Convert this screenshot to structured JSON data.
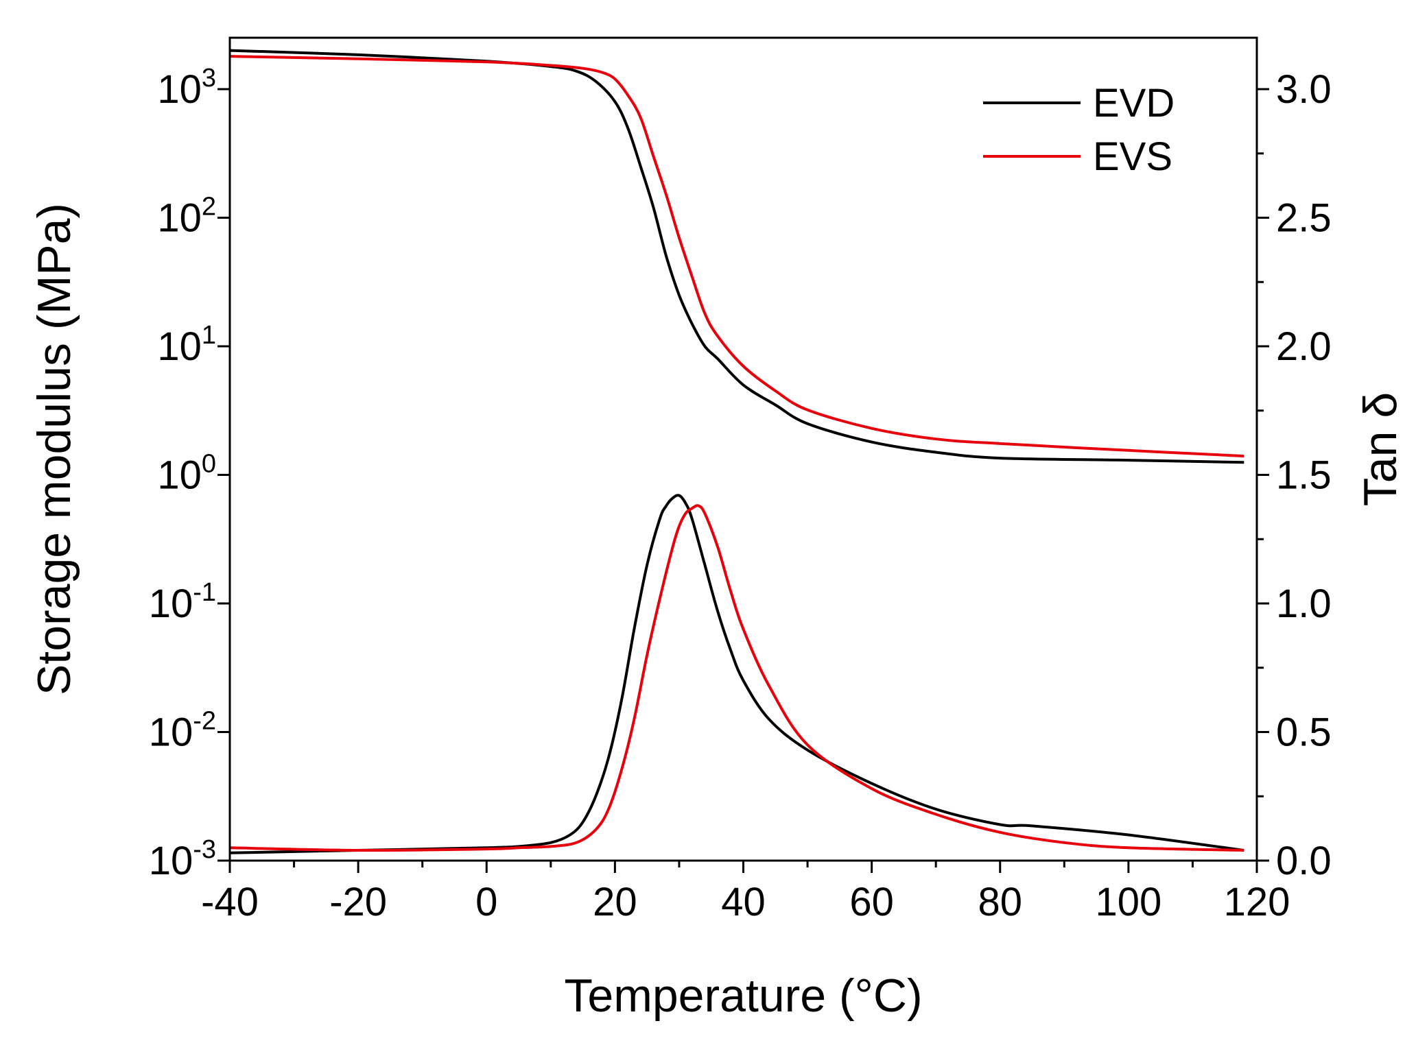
{
  "chart_data": {
    "type": "line",
    "title": "",
    "xlabel": "Temperature (°C)",
    "ylabel_left": "Storage modulus (MPa)",
    "ylabel_right": "Tan δ",
    "xlim": [
      -40,
      120
    ],
    "xticks": [
      -40,
      -20,
      0,
      20,
      40,
      60,
      80,
      100,
      120
    ],
    "xtick_labels": [
      "-40",
      "-20",
      "0",
      "20",
      "40",
      "60",
      "80",
      "100",
      "120"
    ],
    "ylim_left_log10": [
      -3,
      3.4
    ],
    "yticks_left": [
      {
        "base": "10",
        "exp": "-3",
        "log": -3
      },
      {
        "base": "10",
        "exp": "-2",
        "log": -2
      },
      {
        "base": "10",
        "exp": "-1",
        "log": -1
      },
      {
        "base": "10",
        "exp": "0",
        "log": 0
      },
      {
        "base": "10",
        "exp": "1",
        "log": 1
      },
      {
        "base": "10",
        "exp": "2",
        "log": 2
      },
      {
        "base": "10",
        "exp": "3",
        "log": 3
      }
    ],
    "ylim_right": [
      0,
      3.2
    ],
    "yticks_right": [
      0.0,
      0.5,
      1.0,
      1.5,
      2.0,
      2.5,
      3.0
    ],
    "ytick_right_labels": [
      "0.0",
      "0.5",
      "1.0",
      "1.5",
      "2.0",
      "2.5",
      "3.0"
    ],
    "legend": {
      "position": "top-right",
      "entries": [
        {
          "name": "EVD",
          "color": "#000000"
        },
        {
          "name": "EVS",
          "color": "#e8000b"
        }
      ]
    },
    "series": [
      {
        "name": "EVD",
        "quantity": "Storage modulus",
        "axis": "left",
        "scale": "log",
        "color": "#000000",
        "x": [
          -40,
          -20,
          0,
          10,
          14,
          17,
          20,
          22,
          24,
          26,
          28,
          30,
          32,
          34,
          36,
          40,
          45,
          50,
          60,
          70,
          80,
          100,
          118
        ],
        "y": [
          2000,
          1850,
          1650,
          1500,
          1380,
          1150,
          800,
          500,
          250,
          120,
          50,
          25,
          15,
          10,
          8,
          5,
          3.5,
          2.5,
          1.8,
          1.5,
          1.35,
          1.3,
          1.25
        ]
      },
      {
        "name": "EVS",
        "quantity": "Storage modulus",
        "axis": "left",
        "scale": "log",
        "color": "#e8000b",
        "x": [
          -40,
          -20,
          0,
          10,
          15,
          18,
          20,
          22,
          24,
          26,
          28,
          30,
          32,
          34,
          36,
          40,
          45,
          50,
          60,
          70,
          80,
          100,
          118
        ],
        "y": [
          1800,
          1720,
          1630,
          1530,
          1450,
          1350,
          1200,
          900,
          600,
          300,
          150,
          70,
          35,
          18,
          12,
          7,
          4.5,
          3.2,
          2.3,
          1.9,
          1.75,
          1.55,
          1.4
        ]
      },
      {
        "name": "EVD",
        "quantity": "Tan δ",
        "axis": "right",
        "scale": "linear",
        "color": "#000000",
        "x": [
          -40,
          -20,
          0,
          5,
          10,
          13,
          15,
          17,
          19,
          21,
          23,
          25,
          27,
          28,
          29,
          30,
          31,
          32,
          34,
          36,
          38,
          40,
          44,
          50,
          60,
          70,
          80,
          85,
          100,
          118
        ],
        "y": [
          0.03,
          0.04,
          0.05,
          0.055,
          0.07,
          0.1,
          0.15,
          0.25,
          0.4,
          0.62,
          0.9,
          1.15,
          1.33,
          1.38,
          1.41,
          1.42,
          1.39,
          1.33,
          1.15,
          0.97,
          0.82,
          0.7,
          0.55,
          0.43,
          0.3,
          0.2,
          0.14,
          0.135,
          0.1,
          0.04
        ]
      },
      {
        "name": "EVS",
        "quantity": "Tan δ",
        "axis": "right",
        "scale": "linear",
        "color": "#e8000b",
        "x": [
          -40,
          -20,
          0,
          5,
          10,
          14,
          17,
          19,
          21,
          23,
          25,
          27,
          29,
          30,
          31,
          32,
          33,
          34,
          36,
          38,
          40,
          44,
          50,
          60,
          70,
          80,
          90,
          100,
          118
        ],
        "y": [
          0.05,
          0.04,
          0.045,
          0.05,
          0.055,
          0.07,
          0.12,
          0.2,
          0.35,
          0.55,
          0.8,
          1.02,
          1.22,
          1.3,
          1.35,
          1.37,
          1.38,
          1.35,
          1.22,
          1.05,
          0.9,
          0.68,
          0.45,
          0.28,
          0.18,
          0.11,
          0.07,
          0.05,
          0.04
        ]
      }
    ]
  }
}
